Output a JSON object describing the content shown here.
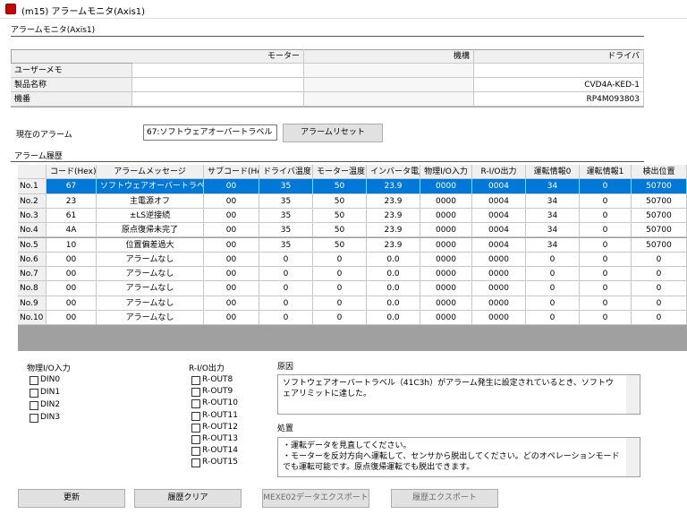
{
  "window": {
    "title": "(m15) アラームモニタ(Axis1)"
  },
  "header": {
    "title": "アラームモニタ(Axis1)"
  },
  "info_table": {
    "columns": [
      "モーター",
      "機構",
      "ドライバ"
    ],
    "rows": [
      {
        "label": "ユーザーメモ"
      },
      {
        "label": "製品名称",
        "driver": "CVD4A-KED-1"
      },
      {
        "label": "機番",
        "driver": "RP4M093803"
      }
    ]
  },
  "current_alarm": {
    "label": "現在のアラーム",
    "value": "67:ソフトウェアオーバートラベル",
    "button": "アラームリセット"
  },
  "history": {
    "title": "アラーム履歴",
    "columns": [
      "コード(Hex)",
      "アラームメッセージ",
      "サブコード(Hex)",
      "ドライバ温度",
      "モーター温度",
      "インバータ電圧",
      "物理I/O入力",
      "R-I/O出力",
      "運転情報0",
      "運転情報1",
      "検出位置"
    ],
    "rows": [
      {
        "no": "No.1",
        "cells": [
          "67",
          "ソフトウェアオーバートラベル",
          "00",
          "35",
          "50",
          "23.9",
          "0000",
          "0004",
          "34",
          "0",
          "50700"
        ]
      },
      {
        "no": "No.2",
        "cells": [
          "23",
          "主電源オフ",
          "00",
          "35",
          "50",
          "23.9",
          "0000",
          "0004",
          "34",
          "0",
          "50700"
        ]
      },
      {
        "no": "No.3",
        "cells": [
          "61",
          "±LS逆接続",
          "00",
          "35",
          "50",
          "23.9",
          "0000",
          "0004",
          "34",
          "0",
          "50700"
        ]
      },
      {
        "no": "No.4",
        "cells": [
          "4A",
          "原点復帰未完了",
          "00",
          "35",
          "50",
          "23.9",
          "0000",
          "0004",
          "34",
          "0",
          "50700"
        ]
      },
      {
        "no": "No.5",
        "cells": [
          "10",
          "位置偏差過大",
          "00",
          "35",
          "50",
          "23.9",
          "0000",
          "0004",
          "34",
          "0",
          "50700"
        ]
      },
      {
        "no": "No.6",
        "cells": [
          "00",
          "アラームなし",
          "00",
          "0",
          "0",
          "0.0",
          "0000",
          "0000",
          "0",
          "0",
          "0"
        ]
      },
      {
        "no": "No.7",
        "cells": [
          "00",
          "アラームなし",
          "00",
          "0",
          "0",
          "0.0",
          "0000",
          "0000",
          "0",
          "0",
          "0"
        ]
      },
      {
        "no": "No.8",
        "cells": [
          "00",
          "アラームなし",
          "00",
          "0",
          "0",
          "0.0",
          "0000",
          "0000",
          "0",
          "0",
          "0"
        ]
      },
      {
        "no": "No.9",
        "cells": [
          "00",
          "アラームなし",
          "00",
          "0",
          "0",
          "0.0",
          "0000",
          "0000",
          "0",
          "0",
          "0"
        ]
      },
      {
        "no": "No.10",
        "cells": [
          "00",
          "アラームなし",
          "00",
          "0",
          "0",
          "0.0",
          "0000",
          "0000",
          "0",
          "0",
          "0"
        ]
      }
    ]
  },
  "io_input": {
    "title": "物理I/O入力",
    "items": [
      "DIN0",
      "DIN1",
      "DIN2",
      "DIN3"
    ]
  },
  "rio_output": {
    "title": "R-I/O出力",
    "items": [
      "R-OUT8",
      "R-OUT9",
      "R-OUT10",
      "R-OUT11",
      "R-OUT12",
      "R-OUT13",
      "R-OUT14",
      "R-OUT15"
    ]
  },
  "cause": {
    "title": "原因",
    "text": "ソフトウェアオーバートラベル（41C3h）がアラーム発生に設定されているとき、ソフトウェアリミットに達した。"
  },
  "action": {
    "title": "処置",
    "lines": [
      "・運転データを見直してください。",
      "・モーターを反対方向へ運転して、センサから脱出してください。どのオペレーションモードでも運転可能です。原点復帰運転でも脱出できます。"
    ]
  },
  "buttons": [
    "更新",
    "履歴クリア",
    "MEXE02データエクスポート",
    "履歴エクスポート"
  ]
}
